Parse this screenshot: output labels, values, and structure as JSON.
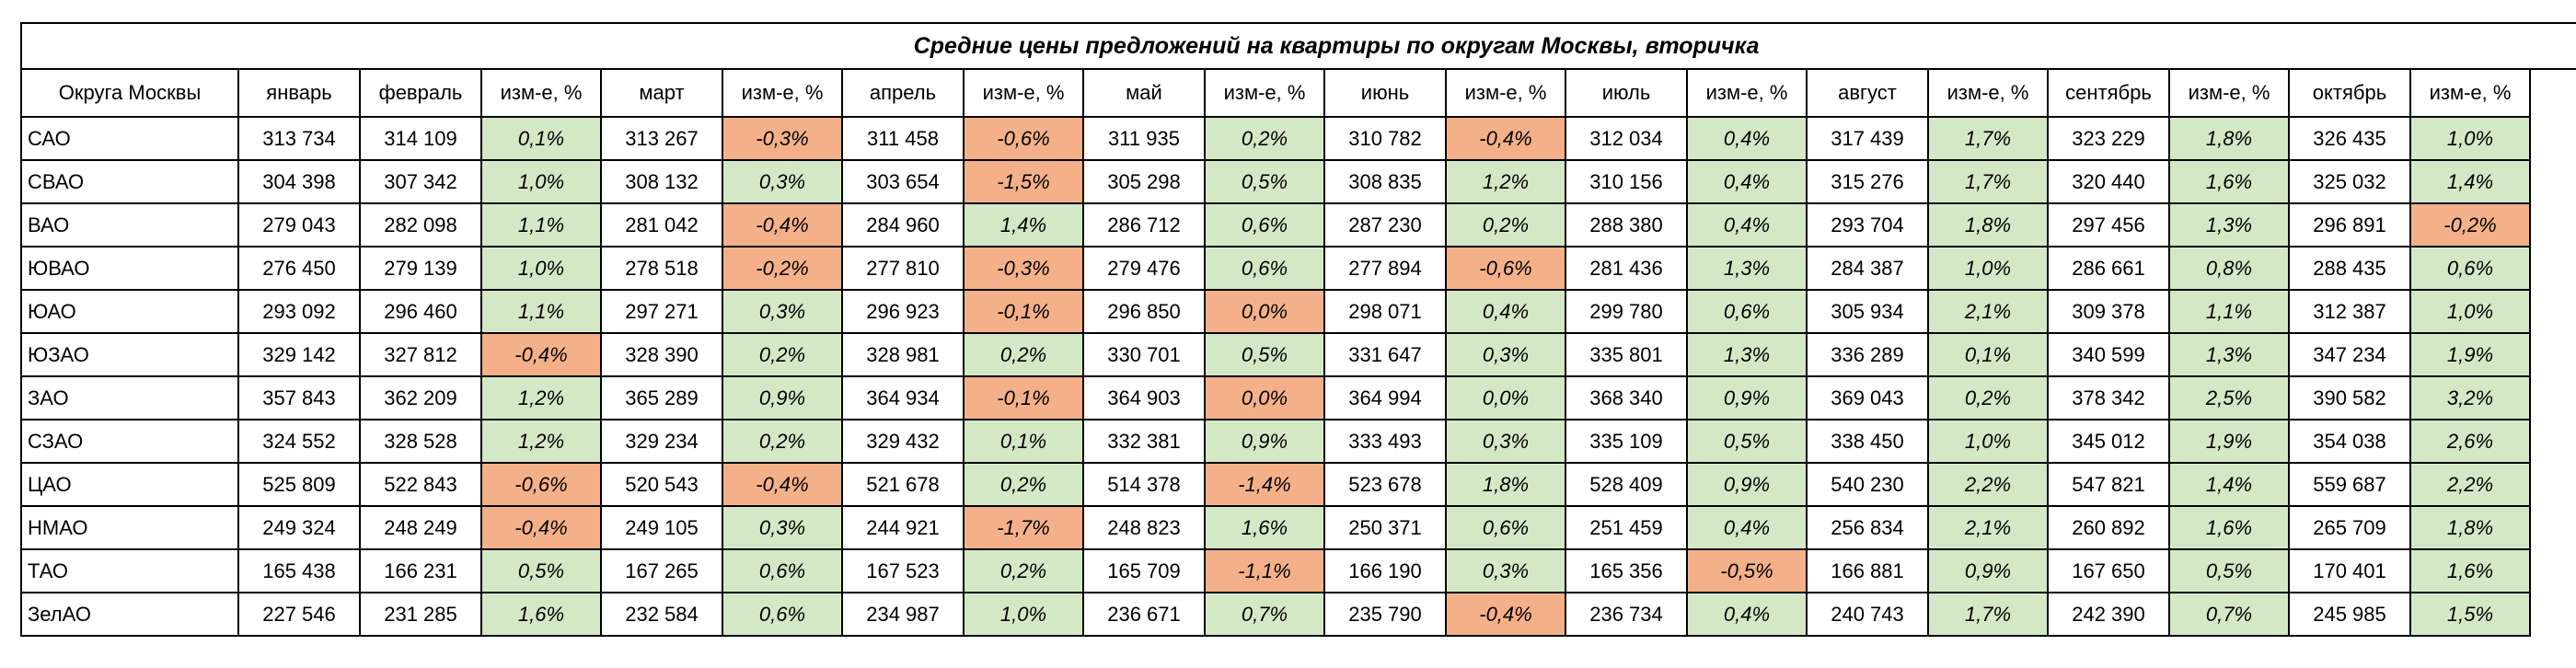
{
  "title": "Средние цены предложений на  квартиры по округам Москвы, вторичка",
  "header": {
    "district": "Округа Москвы",
    "change": "изм-е, %",
    "months": [
      "январь",
      "февраль",
      "март",
      "апрель",
      "май",
      "июнь",
      "июль",
      "август",
      "сентябрь",
      "октябрь"
    ]
  },
  "colors": {
    "positive": "#d5e8c6",
    "negative": "#f4b189"
  },
  "rows": [
    {
      "district": "САО",
      "prices": [
        "313 734",
        "314 109",
        "313 267",
        "311 458",
        "311 935",
        "310 782",
        "312 034",
        "317 439",
        "323 229",
        "326 435"
      ],
      "changes": [
        "0,1%",
        "-0,3%",
        "-0,6%",
        "0,2%",
        "-0,4%",
        "0,4%",
        "1,7%",
        "1,8%",
        "1,0%"
      ],
      "signs": [
        "pos",
        "neg",
        "neg",
        "pos",
        "neg",
        "pos",
        "pos",
        "pos",
        "pos"
      ]
    },
    {
      "district": "СВАО",
      "prices": [
        "304 398",
        "307 342",
        "308 132",
        "303 654",
        "305 298",
        "308 835",
        "310 156",
        "315 276",
        "320 440",
        "325 032"
      ],
      "changes": [
        "1,0%",
        "0,3%",
        "-1,5%",
        "0,5%",
        "1,2%",
        "0,4%",
        "1,7%",
        "1,6%",
        "1,4%"
      ],
      "signs": [
        "pos",
        "pos",
        "neg",
        "pos",
        "pos",
        "pos",
        "pos",
        "pos",
        "pos"
      ]
    },
    {
      "district": "ВАО",
      "prices": [
        "279 043",
        "282 098",
        "281 042",
        "284 960",
        "286 712",
        "287 230",
        "288 380",
        "293 704",
        "297 456",
        "296 891"
      ],
      "changes": [
        "1,1%",
        "-0,4%",
        "1,4%",
        "0,6%",
        "0,2%",
        "0,4%",
        "1,8%",
        "1,3%",
        "-0,2%"
      ],
      "signs": [
        "pos",
        "neg",
        "pos",
        "pos",
        "pos",
        "pos",
        "pos",
        "pos",
        "neg"
      ]
    },
    {
      "district": "ЮВАО",
      "prices": [
        "276 450",
        "279 139",
        "278 518",
        "277 810",
        "279 476",
        "277 894",
        "281 436",
        "284 387",
        "286 661",
        "288 435"
      ],
      "changes": [
        "1,0%",
        "-0,2%",
        "-0,3%",
        "0,6%",
        "-0,6%",
        "1,3%",
        "1,0%",
        "0,8%",
        "0,6%"
      ],
      "signs": [
        "pos",
        "neg",
        "neg",
        "pos",
        "neg",
        "pos",
        "pos",
        "pos",
        "pos"
      ]
    },
    {
      "district": "ЮАО",
      "prices": [
        "293 092",
        "296 460",
        "297 271",
        "296 923",
        "296 850",
        "298 071",
        "299 780",
        "305 934",
        "309 378",
        "312 387"
      ],
      "changes": [
        "1,1%",
        "0,3%",
        "-0,1%",
        "0,0%",
        "0,4%",
        "0,6%",
        "2,1%",
        "1,1%",
        "1,0%"
      ],
      "signs": [
        "pos",
        "pos",
        "neg",
        "neg",
        "pos",
        "pos",
        "pos",
        "pos",
        "pos"
      ]
    },
    {
      "district": "ЮЗАО",
      "prices": [
        "329 142",
        "327 812",
        "328 390",
        "328 981",
        "330 701",
        "331 647",
        "335 801",
        "336 289",
        "340 599",
        "347 234"
      ],
      "changes": [
        "-0,4%",
        "0,2%",
        "0,2%",
        "0,5%",
        "0,3%",
        "1,3%",
        "0,1%",
        "1,3%",
        "1,9%"
      ],
      "signs": [
        "neg",
        "pos",
        "pos",
        "pos",
        "pos",
        "pos",
        "pos",
        "pos",
        "pos"
      ]
    },
    {
      "district": "ЗАО",
      "prices": [
        "357 843",
        "362 209",
        "365 289",
        "364 934",
        "364 903",
        "364 994",
        "368 340",
        "369 043",
        "378 342",
        "390 582"
      ],
      "changes": [
        "1,2%",
        "0,9%",
        "-0,1%",
        "0,0%",
        "0,0%",
        "0,9%",
        "0,2%",
        "2,5%",
        "3,2%"
      ],
      "signs": [
        "pos",
        "pos",
        "neg",
        "neg",
        "pos",
        "pos",
        "pos",
        "pos",
        "pos"
      ]
    },
    {
      "district": "СЗАО",
      "prices": [
        "324 552",
        "328 528",
        "329 234",
        "329 432",
        "332 381",
        "333 493",
        "335 109",
        "338 450",
        "345 012",
        "354 038"
      ],
      "changes": [
        "1,2%",
        "0,2%",
        "0,1%",
        "0,9%",
        "0,3%",
        "0,5%",
        "1,0%",
        "1,9%",
        "2,6%"
      ],
      "signs": [
        "pos",
        "pos",
        "pos",
        "pos",
        "pos",
        "pos",
        "pos",
        "pos",
        "pos"
      ]
    },
    {
      "district": "ЦАО",
      "prices": [
        "525 809",
        "522 843",
        "520 543",
        "521 678",
        "514 378",
        "523 678",
        "528 409",
        "540 230",
        "547 821",
        "559 687"
      ],
      "changes": [
        "-0,6%",
        "-0,4%",
        "0,2%",
        "-1,4%",
        "1,8%",
        "0,9%",
        "2,2%",
        "1,4%",
        "2,2%"
      ],
      "signs": [
        "neg",
        "neg",
        "pos",
        "neg",
        "pos",
        "pos",
        "pos",
        "pos",
        "pos"
      ]
    },
    {
      "district": "НМАО",
      "prices": [
        "249 324",
        "248 249",
        "249 105",
        "244 921",
        "248 823",
        "250 371",
        "251 459",
        "256 834",
        "260 892",
        "265 709"
      ],
      "changes": [
        "-0,4%",
        "0,3%",
        "-1,7%",
        "1,6%",
        "0,6%",
        "0,4%",
        "2,1%",
        "1,6%",
        "1,8%"
      ],
      "signs": [
        "neg",
        "pos",
        "neg",
        "pos",
        "pos",
        "pos",
        "pos",
        "pos",
        "pos"
      ]
    },
    {
      "district": "ТАО",
      "prices": [
        "165 438",
        "166 231",
        "167 265",
        "167 523",
        "165 709",
        "166 190",
        "165 356",
        "166 881",
        "167 650",
        "170 401"
      ],
      "changes": [
        "0,5%",
        "0,6%",
        "0,2%",
        "-1,1%",
        "0,3%",
        "-0,5%",
        "0,9%",
        "0,5%",
        "1,6%"
      ],
      "signs": [
        "pos",
        "pos",
        "pos",
        "neg",
        "pos",
        "neg",
        "pos",
        "pos",
        "pos"
      ]
    },
    {
      "district": "ЗелАО",
      "prices": [
        "227 546",
        "231 285",
        "232 584",
        "234 987",
        "236 671",
        "235 790",
        "236 734",
        "240 743",
        "242 390",
        "245 985"
      ],
      "changes": [
        "1,6%",
        "0,6%",
        "1,0%",
        "0,7%",
        "-0,4%",
        "0,4%",
        "1,7%",
        "0,7%",
        "1,5%"
      ],
      "signs": [
        "pos",
        "pos",
        "pos",
        "pos",
        "neg",
        "pos",
        "pos",
        "pos",
        "pos"
      ]
    }
  ]
}
